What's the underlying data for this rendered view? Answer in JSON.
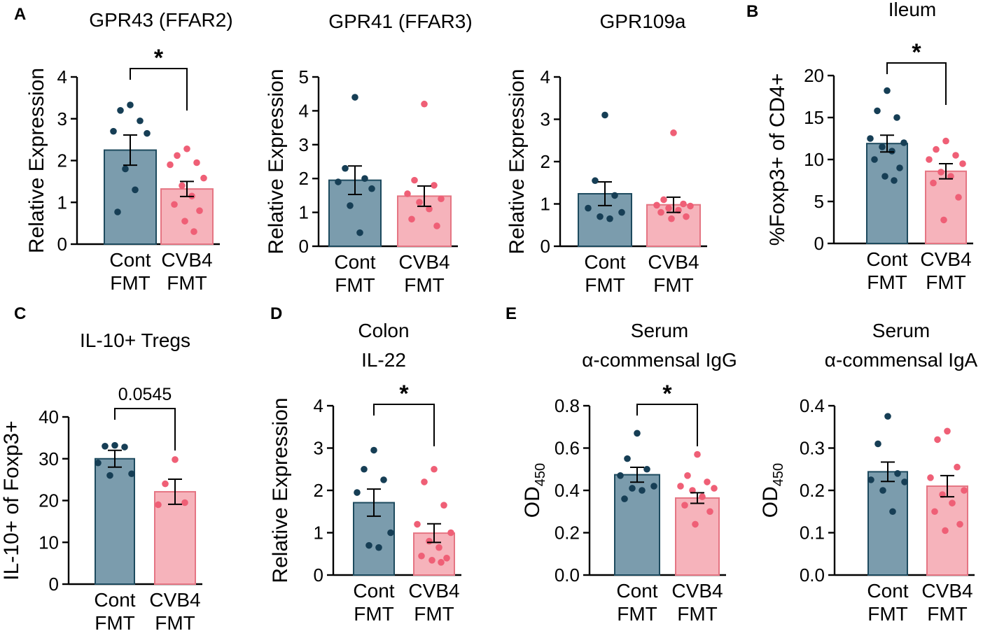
{
  "colors": {
    "cont_fill": "#7b9cad",
    "cont_edge": "#1d4a5e",
    "cont_dot": "#163e55",
    "cvb4_fill": "#f6b3bb",
    "cvb4_edge": "#e57583",
    "cvb4_dot": "#ef5f76"
  },
  "chart_data": [
    {
      "panel": "A",
      "type": "bar",
      "title": [
        "GPR43 (FFAR2)"
      ],
      "ylabel": "Relative Expression",
      "ylim": [
        0,
        4
      ],
      "yticks": [
        "0",
        "1",
        "2",
        "3",
        "4"
      ],
      "categories": [
        [
          "Cont",
          "FMT"
        ],
        [
          "CVB4",
          "FMT"
        ]
      ],
      "values": [
        2.25,
        1.32
      ],
      "sem": [
        0.36,
        0.18
      ],
      "points": [
        [
          3.33,
          3.2,
          2.95,
          2.7,
          2.65,
          1.8,
          1.3,
          0.77
        ],
        [
          2.28,
          2.12,
          1.95,
          1.9,
          1.58,
          1.4,
          1.15,
          0.95,
          0.8,
          0.55,
          0.3
        ]
      ],
      "sig": "*"
    },
    {
      "panel": "",
      "type": "bar",
      "title": [
        "GPR41 (FFAR3)"
      ],
      "ylabel": "Relative Expression",
      "ylim": [
        0,
        5
      ],
      "yticks": [
        "0",
        "1",
        "2",
        "3",
        "4",
        "5"
      ],
      "categories": [
        [
          "Cont",
          "FMT"
        ],
        [
          "CVB4",
          "FMT"
        ]
      ],
      "values": [
        1.95,
        1.48
      ],
      "sem": [
        0.42,
        0.3
      ],
      "points": [
        [
          4.4,
          2.3,
          2.0,
          1.9,
          1.7,
          1.2,
          0.4
        ],
        [
          4.2,
          1.95,
          1.8,
          1.55,
          1.4,
          1.3,
          1.1,
          0.8,
          0.6
        ]
      ],
      "sig": ""
    },
    {
      "panel": "",
      "type": "bar",
      "title": [
        "GPR109a"
      ],
      "ylabel": "Relative Expression",
      "ylim": [
        0,
        4
      ],
      "yticks": [
        "0",
        "1",
        "2",
        "3",
        "4"
      ],
      "categories": [
        [
          "Cont",
          "FMT"
        ],
        [
          "CVB4",
          "FMT"
        ]
      ],
      "values": [
        1.24,
        0.98
      ],
      "sem": [
        0.28,
        0.18
      ],
      "points": [
        [
          3.1,
          1.55,
          1.2,
          0.9,
          0.8,
          0.7,
          0.65
        ],
        [
          2.68,
          1.1,
          1.0,
          0.97,
          0.95,
          0.9,
          0.85,
          0.8,
          0.7,
          0.65
        ]
      ],
      "sig": ""
    },
    {
      "panel": "B",
      "type": "bar",
      "title": [
        "Ileum"
      ],
      "ylabel": "%Foxp3+ of CD4+",
      "ylim": [
        0,
        20
      ],
      "yticks": [
        "0",
        "5",
        "10",
        "15",
        "20"
      ],
      "categories": [
        [
          "Cont",
          "FMT"
        ],
        [
          "CVB4",
          "FMT"
        ]
      ],
      "values": [
        11.9,
        8.6
      ],
      "sem": [
        1.0,
        0.9
      ],
      "points": [
        [
          18.2,
          15.8,
          15.0,
          12.5,
          12.0,
          11.5,
          11.0,
          10.0,
          9.0,
          8.0,
          7.5
        ],
        [
          12.2,
          11.2,
          10.5,
          10.0,
          9.5,
          8.5,
          8.0,
          7.2,
          5.5,
          2.8
        ]
      ],
      "sig": "*"
    },
    {
      "panel": "C",
      "type": "bar",
      "title": [
        "IL-10+ Tregs"
      ],
      "ylabel": "IL-10+ of Foxp3+",
      "ylim": [
        0,
        40
      ],
      "yticks": [
        "0",
        "10",
        "20",
        "30",
        "40"
      ],
      "categories": [
        [
          "Cont",
          "FMT"
        ],
        [
          "CVB4",
          "FMT"
        ]
      ],
      "values": [
        30.0,
        22.1
      ],
      "sem": [
        2.0,
        3.0
      ],
      "points": [
        [
          33.2,
          33.0,
          32.8,
          29.0,
          26.4,
          26.0
        ],
        [
          29.8,
          24.0,
          19.5,
          19.0
        ]
      ],
      "sig": "0.0545"
    },
    {
      "panel": "D",
      "type": "bar",
      "title": [
        "Colon",
        "IL-22"
      ],
      "ylabel": "Relative Expression",
      "ylim": [
        0,
        4
      ],
      "yticks": [
        "0",
        "1",
        "2",
        "3",
        "4"
      ],
      "categories": [
        [
          "Cont",
          "FMT"
        ],
        [
          "CVB4",
          "FMT"
        ]
      ],
      "values": [
        1.71,
        0.99
      ],
      "sem": [
        0.32,
        0.22
      ],
      "points": [
        [
          2.95,
          2.5,
          2.25,
          1.95,
          1.0,
          0.7,
          0.65
        ],
        [
          2.5,
          2.2,
          1.65,
          1.2,
          1.0,
          0.8,
          0.65,
          0.45,
          0.4,
          0.35,
          0.3
        ]
      ],
      "sig": "*"
    },
    {
      "panel": "E",
      "type": "bar",
      "title": [
        "Serum",
        "α-commensal IgG"
      ],
      "ylabel": "OD450",
      "ylim": [
        0,
        0.8
      ],
      "yticks": [
        "0.0",
        "0.2",
        "0.4",
        "0.6",
        "0.8"
      ],
      "categories": [
        [
          "Cont",
          "FMT"
        ],
        [
          "CVB4",
          "FMT"
        ]
      ],
      "values": [
        0.474,
        0.364
      ],
      "sem": [
        0.035,
        0.025
      ],
      "points": [
        [
          0.67,
          0.55,
          0.5,
          0.47,
          0.42,
          0.41,
          0.4,
          0.36
        ],
        [
          0.57,
          0.47,
          0.44,
          0.42,
          0.41,
          0.4,
          0.37,
          0.33,
          0.3,
          0.24
        ]
      ],
      "sig": "*"
    },
    {
      "panel": "",
      "type": "bar",
      "title": [
        "Serum",
        "α-commensal IgA"
      ],
      "ylabel": "OD450",
      "ylim": [
        0,
        0.4
      ],
      "yticks": [
        "0.0",
        "0.1",
        "0.2",
        "0.3",
        "0.4"
      ],
      "categories": [
        [
          "Cont",
          "FMT"
        ],
        [
          "CVB4",
          "FMT"
        ]
      ],
      "values": [
        0.244,
        0.21
      ],
      "sem": [
        0.023,
        0.025
      ],
      "points": [
        [
          0.375,
          0.31,
          0.24,
          0.225,
          0.22,
          0.2,
          0.15
        ],
        [
          0.34,
          0.32,
          0.255,
          0.23,
          0.2,
          0.19,
          0.17,
          0.15,
          0.12,
          0.105
        ]
      ],
      "sig": ""
    }
  ]
}
